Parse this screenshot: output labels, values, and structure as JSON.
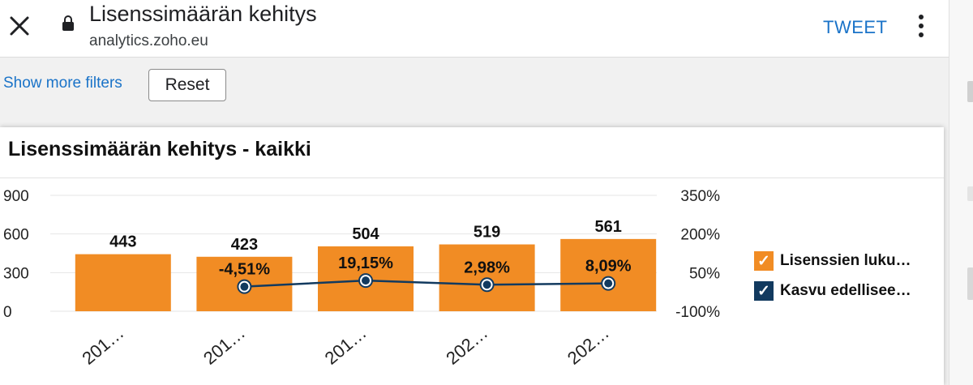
{
  "header": {
    "title": "Lisenssimäärän kehitys",
    "url": "analytics.zoho.eu",
    "tweet_label": "TWEET"
  },
  "filters": {
    "show_more_label": "Show more filters",
    "reset_label": "Reset"
  },
  "card": {
    "title": "Lisenssimäärän kehitys - kaikki"
  },
  "colors": {
    "bar": "#f18c24",
    "line": "#123a5f",
    "link": "#1a73c8"
  },
  "chart_data": {
    "type": "bar",
    "categories": [
      "201…",
      "201…",
      "201…",
      "202…",
      "202…"
    ],
    "series": [
      {
        "name": "Lisenssien luku…",
        "type": "bar",
        "axis": "left",
        "values": [
          443,
          423,
          504,
          519,
          561
        ],
        "labels": [
          "443",
          "423",
          "504",
          "519",
          "561"
        ]
      },
      {
        "name": "Kasvu edellisee…",
        "type": "line",
        "axis": "right",
        "values": [
          null,
          -4.51,
          19.15,
          2.98,
          8.09
        ],
        "labels": [
          "",
          "-4,51%",
          "19,15%",
          "2,98%",
          "8,09%"
        ]
      }
    ],
    "y_left": {
      "ticks": [
        "900",
        "600",
        "300",
        "0"
      ],
      "range": [
        0,
        900
      ]
    },
    "y_right": {
      "ticks": [
        "350%",
        "200%",
        "50%",
        "-100%"
      ],
      "range": [
        -100,
        350
      ]
    },
    "legend_position": "right",
    "grid": true
  }
}
